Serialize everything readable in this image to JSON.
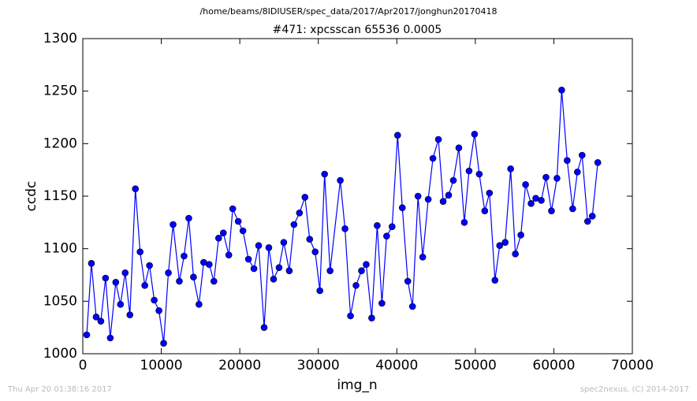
{
  "chart_data": {
    "type": "line",
    "suptitle": "/home/beams/8IDIUSER/spec_data/2017/Apr2017/jonghun20170418",
    "title": "#471: xpcsscan 65536 0.0005",
    "x_label": "img_n",
    "y_label": "ccdc",
    "x": [
      500,
      1100,
      1700,
      2300,
      2900,
      3500,
      4200,
      4800,
      5400,
      6000,
      6700,
      7300,
      7900,
      8500,
      9100,
      9700,
      10300,
      10900,
      11500,
      12300,
      12900,
      13500,
      14100,
      14800,
      15400,
      16100,
      16700,
      17300,
      17900,
      18600,
      19100,
      19800,
      20400,
      21100,
      21800,
      22400,
      23100,
      23700,
      24300,
      25000,
      25600,
      26300,
      26900,
      27600,
      28300,
      28900,
      29600,
      30200,
      30800,
      31500,
      32800,
      33400,
      34100,
      34800,
      35500,
      36100,
      36800,
      37500,
      38100,
      38700,
      39400,
      40100,
      40700,
      41400,
      42000,
      42700,
      43300,
      44000,
      44600,
      45300,
      45900,
      46600,
      47200,
      47900,
      48600,
      49200,
      49900,
      50500,
      51200,
      51800,
      52500,
      53100,
      53800,
      54500,
      55100,
      55800,
      56400,
      57100,
      57700,
      58400,
      59000,
      59700,
      60400,
      61000,
      61700,
      62400,
      63000,
      63600,
      64300,
      64900,
      65600
    ],
    "values": [
      1018,
      1086,
      1035,
      1031,
      1072,
      1015,
      1068,
      1047,
      1077,
      1037,
      1157,
      1097,
      1065,
      1084,
      1051,
      1041,
      1010,
      1077,
      1123,
      1069,
      1093,
      1129,
      1073,
      1047,
      1087,
      1085,
      1069,
      1110,
      1115,
      1094,
      1138,
      1126,
      1117,
      1090,
      1081,
      1103,
      1025,
      1101,
      1071,
      1082,
      1106,
      1079,
      1123,
      1134,
      1149,
      1109,
      1097,
      1060,
      1171,
      1079,
      1165,
      1119,
      1036,
      1065,
      1079,
      1085,
      1034,
      1122,
      1048,
      1112,
      1121,
      1208,
      1139,
      1069,
      1045,
      1150,
      1092,
      1147,
      1186,
      1204,
      1145,
      1151,
      1165,
      1196,
      1125,
      1174,
      1209,
      1171,
      1136,
      1153,
      1070,
      1103,
      1106,
      1176,
      1095,
      1113,
      1161,
      1143,
      1148,
      1146,
      1168,
      1136,
      1167,
      1251,
      1184,
      1138,
      1173,
      1189,
      1126,
      1131,
      1182
    ],
    "color": "#0000ff",
    "xlim": [
      0,
      70000
    ],
    "xticks": [
      0,
      10000,
      20000,
      30000,
      40000,
      50000,
      60000,
      70000
    ],
    "ylim": [
      1000,
      1300
    ],
    "yticks": [
      1000,
      1050,
      1100,
      1150,
      1200,
      1250,
      1300
    ]
  },
  "footer": {
    "left": "Thu Apr 20 01:38:16 2017",
    "right": "spec2nexus, (C) 2014-2017"
  }
}
